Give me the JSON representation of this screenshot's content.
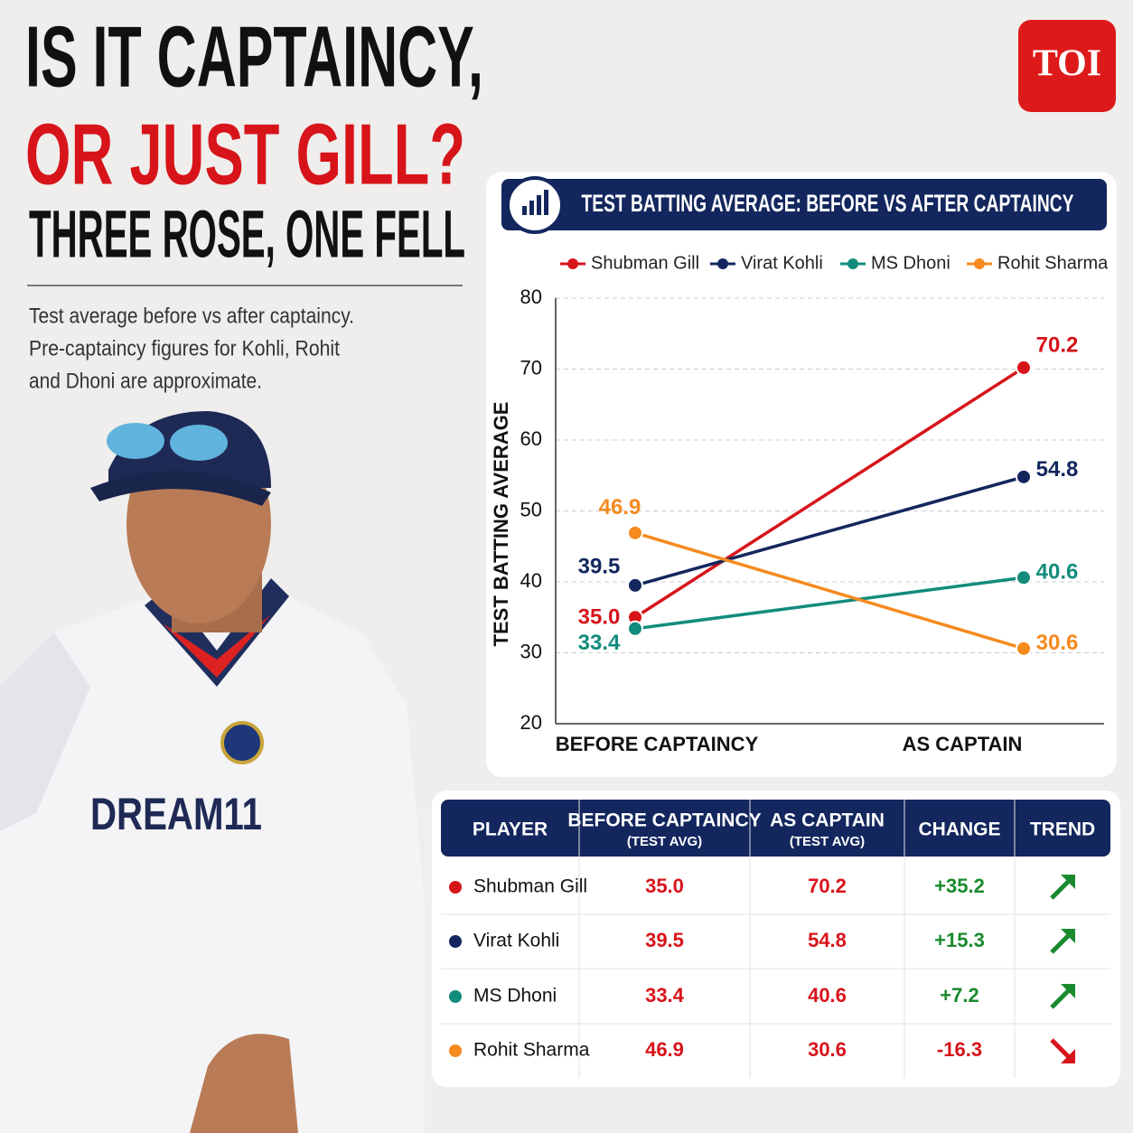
{
  "header": {
    "logo": "TOI",
    "title_line1": "IS IT CAPTAINCY,",
    "title_line2": "OR JUST GILL?",
    "title_line3": "THREE ROSE, ONE FELL",
    "subtitle_lines": [
      "Test average before vs after captaincy.",
      "Pre-captaincy figures for Kohli, Rohit",
      "and Dhoni are approximate."
    ]
  },
  "chart_data": {
    "type": "line",
    "title": "TEST BATTING AVERAGE: BEFORE VS AFTER CAPTAINCY",
    "y_label": "TEST BATTING AVERAGE",
    "categories": [
      "BEFORE CAPTAINCY",
      "AS CAPTAIN"
    ],
    "series": [
      {
        "name": "Shubman Gill",
        "color": "#d7141a",
        "values": [
          35.0,
          70.2
        ],
        "value_labels": [
          "35.0",
          "70.2"
        ]
      },
      {
        "name": "Virat Kohli",
        "color": "#13275e",
        "values": [
          39.5,
          54.8
        ]
      },
      {
        "name": "MS Dhoni",
        "color": "#138c7c",
        "values": [
          33.4,
          40.6
        ]
      },
      {
        "name": "Rohit Sharma",
        "color": "#f58a1f",
        "values": [
          46.9,
          30.6
        ]
      }
    ],
    "ylim": [
      20,
      80
    ],
    "yticks": [
      20,
      30,
      40,
      50,
      60,
      70,
      80
    ],
    "grid": true,
    "legend": "top"
  },
  "table": {
    "headers": [
      [
        "PLAYER"
      ],
      [
        "BEFORE CAPTAINCY",
        "(TEST AVG)"
      ],
      [
        "AS CAPTAIN",
        "(TEST AVG)"
      ],
      [
        "CHANGE"
      ],
      [
        "TREND"
      ]
    ],
    "rows": [
      [
        "Shubman Gill",
        "35.0",
        "70.2",
        "+35.2"
      ],
      [
        "Virat Kohli",
        "39.5",
        "54.8",
        "+15.3"
      ],
      [
        "MS Dhoni",
        "33.4",
        "40.6",
        "+7.2"
      ],
      [
        "Rohit Sharma",
        "46.9",
        "30.6",
        "-16.3"
      ]
    ]
  }
}
